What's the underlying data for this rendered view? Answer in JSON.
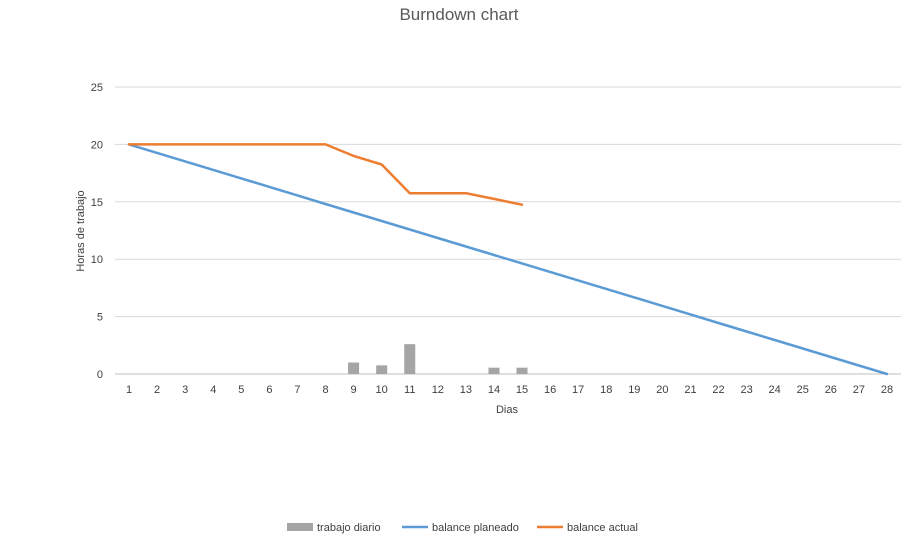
{
  "chart_data": {
    "type": "bar",
    "title": "Burndown chart",
    "xlabel": "Dias",
    "ylabel": "Horas de trabajo",
    "ylim": [
      0,
      25
    ],
    "yticks": [
      0,
      5,
      10,
      15,
      20,
      25
    ],
    "grid": true,
    "legend_position": "bottom",
    "categories": [
      "1",
      "2",
      "3",
      "4",
      "5",
      "6",
      "7",
      "8",
      "9",
      "10",
      "11",
      "12",
      "13",
      "14",
      "15",
      "16",
      "17",
      "18",
      "19",
      "20",
      "21",
      "22",
      "23",
      "24",
      "25",
      "26",
      "27",
      "28"
    ],
    "series": [
      {
        "name": "trabajo diario",
        "kind": "bar",
        "color": "#a5a5a5",
        "values": [
          0,
          0,
          0,
          0,
          0,
          0,
          0,
          0,
          1,
          0.75,
          2.6,
          0,
          0,
          0.55,
          0.55,
          null,
          null,
          null,
          null,
          null,
          null,
          null,
          null,
          null,
          null,
          null,
          null,
          null
        ]
      },
      {
        "name": "balance planeado",
        "kind": "line",
        "color": "#5b9bd5",
        "values": [
          20,
          19.26,
          18.52,
          17.78,
          17.04,
          16.3,
          15.56,
          14.81,
          14.07,
          13.33,
          12.59,
          11.85,
          11.11,
          10.37,
          9.63,
          8.89,
          8.15,
          7.41,
          6.67,
          5.93,
          5.19,
          4.44,
          3.7,
          2.96,
          2.22,
          1.48,
          0.74,
          0
        ]
      },
      {
        "name": "balance actual",
        "kind": "line",
        "color": "#ed7d31",
        "values": [
          20,
          20,
          20,
          20,
          20,
          20,
          20,
          20,
          19,
          18.25,
          15.75,
          15.75,
          15.75,
          15.25,
          14.75,
          null,
          null,
          null,
          null,
          null,
          null,
          null,
          null,
          null,
          null,
          null,
          null,
          null
        ]
      }
    ]
  }
}
